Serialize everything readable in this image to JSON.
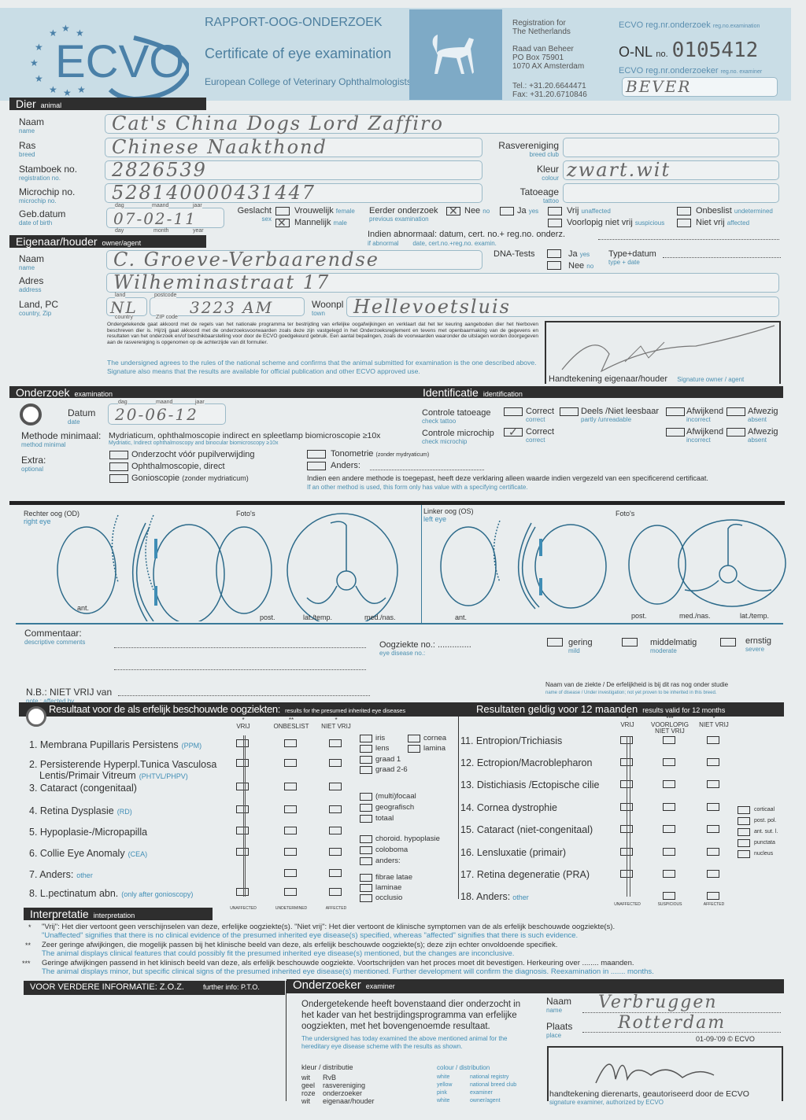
{
  "header": {
    "logo": "ECVO",
    "title_nl": "RAPPORT-OOG-ONDERZOEK",
    "title_en": "Certificate of eye examination",
    "college": "European College of Veterinary Ophthalmologists",
    "registration_1": "Registration for",
    "registration_2": "The Netherlands",
    "address_1": "Raad van Beheer",
    "address_2": "PO Box 75901",
    "address_3": "1070 AX Amsterdam",
    "tel": "Tel.: +31.20.6644471",
    "fax": "Fax: +31.20.6710846",
    "reg_exam_label": "ECVO reg.nr.onderzoek",
    "reg_exam_en": "reg.no.examination",
    "onl_label": "O-NL",
    "no_label": "no.",
    "cert_number": "0105412",
    "reg_examiner_label": "ECVO reg.nr.onderzoeker",
    "reg_examiner_en": "reg.no. examiner",
    "examiner_code": "BEVER"
  },
  "animal": {
    "section": "Dier",
    "section_en": "animal",
    "name_label": "Naam",
    "name_en": "name",
    "name": "Cat's China Dogs Lord Zaffiro",
    "breed_label": "Ras",
    "breed_en": "breed",
    "breed": "Chinese Naakthond",
    "club_label": "Rasvereniging",
    "club_en": "breed club",
    "club": "",
    "reg_label": "Stamboek no.",
    "reg_en": "registration no.",
    "reg": "2826539",
    "colour_label": "Kleur",
    "colour_en": "colour",
    "colour": "zwart.wit",
    "chip_label": "Microchip no.",
    "chip_en": "microchip no.",
    "chip": "528140000431447",
    "tattoo_label": "Tatoeage",
    "tattoo_en": "tattoo",
    "tattoo": "",
    "dob_label": "Geb.datum",
    "dob_en": "date of birth",
    "day_label": "dag",
    "month_label": "maand",
    "year_label": "jaar",
    "day_en": "day",
    "month_en": "month",
    "year_en": "year",
    "dob": "07-02-11",
    "sex_label": "Geslacht",
    "sex_en": "sex",
    "female": "Vrouwelijk",
    "female_en": "female",
    "female_checked": false,
    "male": "Mannelijk",
    "male_en": "male",
    "male_checked": true,
    "prev_label": "Eerder onderzoek",
    "prev_en": "previous examination",
    "prev_no": "Nee",
    "prev_no_en": "no",
    "prev_no_checked": true,
    "prev_yes": "Ja",
    "prev_yes_en": "yes",
    "unaffected": "Vrij",
    "unaffected_en": "unaffected",
    "undetermined": "Onbeslist",
    "undetermined_en": "undetermined",
    "suspicious": "Voorlopig niet vrij",
    "suspicious_en": "suspicious",
    "affected": "Niet vrij",
    "affected_en": "affected",
    "abnormal_label": "Indien abnormaal:",
    "abnormal_en": "if abnormal",
    "abnormal_fields": "datum, cert. no.+ reg.no. onderz.",
    "abnormal_fields_en": "date, cert.no.+reg.no. examin."
  },
  "owner": {
    "section": "Eigenaar/houder",
    "section_en": "owner/agent",
    "name_label": "Naam",
    "name_en": "name",
    "name": "C. Groeve-Verbaarendse",
    "address_label": "Adres",
    "address_en": "address",
    "address": "Wilheminastraat 17",
    "country_label": "Land, PC",
    "country_en": "country, Zip",
    "land_label": "land",
    "land_en": "country",
    "country": "NL",
    "postcode_label": "postcode",
    "postcode_en": "ZIP code",
    "postcode": "3223 AM",
    "town_label": "Woonpl",
    "town_en": "town",
    "town": "Hellevoetsluis",
    "dna_label": "DNA-Tests",
    "dna_yes": "Ja",
    "dna_yes_en": "yes",
    "dna_no": "Nee",
    "dna_no_en": "no",
    "type_label": "Type+datum",
    "type_en": "type + date",
    "agreement_nl": "Ondergetekende gaat akkoord met de regels van het nationale programma ter bestrijding van erfelijke oogafwijkingen en verklaart dat het ter keuring aangeboden dier het hierboven beschreven dier is. Hij/zij gaat akkoord met de onderzoeksvoorwaarden zoals deze zijn vastgelegd in het Onderzoeksreglement en tevens met openbaarmaking van de gegevens en resultaten van het onderzoek en/of beschikbaarstelling voor door de ECVO goedgekeurd gebruik. Een aantal bepalingen, zoals de voorwaarden waaronder de uitslagen worden doorgegeven aan de rasvereniging is opgenomen op de achterzijde van dit formulier.",
    "agreement_en": "The undersigned agrees to the rules of the national scheme and confirms that the animal submitted for examination is the one described above. Signature also means that the results are available for official publication and other ECVO approved use.",
    "signature_label": "Handtekening eigenaar/houder",
    "signature_en": "Signature owner / agent",
    "signature": "Groeve-Verbaarendse"
  },
  "exam": {
    "section": "Onderzoek",
    "section_en": "examination",
    "date_label": "Datum",
    "date_en": "date",
    "date": "20-06-12",
    "method_label": "Methode minimaal:",
    "method_en": "method minimal",
    "method": "Mydriaticum, ophthalmoscopie indirect en spleetlamp biomicroscopie ≥10x",
    "method_sub": "Mydriatic, Indirect ophthalmoscopy and binocular biomicroscopy ≥10x",
    "extra_label": "Extra:",
    "extra_en": "optional",
    "extras": [
      "Onderzocht vóór pupilverwijding",
      "Ophthalmoscopie, direct",
      "Gonioscopie"
    ],
    "gonio_note": "(zonder mydriaticum)",
    "tono": "Tonometrie",
    "tono_note": "(zonder mydryaticum)",
    "other": "Anders:",
    "other_method_nl": "Indien een andere methode is toegepast, heeft deze verklaring alleen waarde indien vergezeld van een specificerend certificaat.",
    "other_method_en": "If an other method is used, this form only has value with a specifying certificate."
  },
  "identification": {
    "section": "Identificatie",
    "section_en": "identification",
    "tattoo_label": "Controle tatoeage",
    "tattoo_en": "check tattoo",
    "chip_label": "Controle microchip",
    "chip_en": "check microchip",
    "correct": "Correct",
    "correct_en": "correct",
    "partly": "Deels /Niet leesbaar",
    "partly_en": "partly /unreadable",
    "incorrect": "Afwijkend",
    "incorrect_en": "incorrect",
    "absent": "Afwezig",
    "absent_en": "absent",
    "chip_correct_checked": true
  },
  "eyes": {
    "right": "Rechter oog  (OD)",
    "right_en": "right eye",
    "left": "Linker oog  (OS)",
    "left_en": "left eye",
    "photos": "Foto's",
    "ant": "ant.",
    "post": "post.",
    "lat": "lat./temp.",
    "med": "med./nas."
  },
  "comments": {
    "label": "Commentaar:",
    "label_en": "descriptive comments",
    "disease_no": "Oogziekte no.: ..............",
    "disease_no_en": "eye disease no.:",
    "mild": "gering",
    "mild_en": "mild",
    "moderate": "middelmatig",
    "moderate_en": "moderate",
    "severe": "ernstig",
    "severe_en": "severe",
    "nb": "N.B.: NIET VRIJ van",
    "nb_en": "note  :  affected by",
    "disease_name": "Naam van de ziekte / De erfelijkheid is bij dit ras nog onder studie",
    "disease_name_en": "name of disease / Under investigation; not yet proven to be inherited in this breed."
  },
  "results": {
    "section": "Resultaat voor de als erfelijk beschouwde oogziekten:",
    "section_en": "results for the presumed inherited eye diseases",
    "valid": "Resultaten geldig voor 12 maanden",
    "valid_en": "results valid for 12 months",
    "col_left": [
      "VRIJ",
      "ONBESLIST",
      "NIET VRIJ"
    ],
    "col_left_stars": [
      "*",
      "**",
      "*"
    ],
    "col_right": [
      "VRIJ",
      "VOORLOPIG NIET VRIJ",
      "NIET VRIJ"
    ],
    "col_right_stars": [
      "*",
      "***",
      "*"
    ],
    "foot_left": [
      "UNAFFECTED",
      "UNDETERMINED",
      "AFFECTED"
    ],
    "foot_right": [
      "UNAFFECTED",
      "SUSPICIOUS",
      "AFFECTED"
    ],
    "left_rows": [
      {
        "label": "1. Membrana Pupillaris Persistens",
        "abbr": "(PPM)",
        "vrij": true
      },
      {
        "label": "2. Persisterende Hyperpl.Tunica Vasculosa",
        "label2": "Lentis/Primair Vitreum",
        "abbr": "(PHTVL/PHPV)",
        "vrij": true
      },
      {
        "label": "3. Cataract (congenitaal)",
        "abbr": "",
        "vrij": true
      },
      {
        "label": "4. Retina Dysplasie",
        "abbr": "(RD)",
        "vrij": true
      },
      {
        "label": "5. Hypoplasie-/Micropapilla",
        "abbr": "",
        "vrij": true
      },
      {
        "label": "6. Collie Eye Anomaly",
        "abbr": "(CEA)",
        "vrij": true
      },
      {
        "label": "7. Anders:",
        "abbr": "other",
        "vrij": false
      },
      {
        "label": "8. L.pectinatum abn.",
        "abbr": "(only after gonioscopy)",
        "vrij": false
      }
    ],
    "sub_ppm": [
      "iris",
      "lens",
      "cornea",
      "lamina"
    ],
    "sub_phpv": [
      "graad 1",
      "graad 2-6"
    ],
    "sub_rd": [
      "(multi)focaal",
      "geografisch",
      "totaal"
    ],
    "sub_cea": [
      "choroid. hypoplasie",
      "coloboma",
      "anders:"
    ],
    "sub_lp": [
      "fibrae latae",
      "laminae",
      "occlusio"
    ],
    "right_rows": [
      {
        "label": "11. Entropion/Trichiasis",
        "vrij": true
      },
      {
        "label": "12. Ectropion/Macroblepharon",
        "vrij": true
      },
      {
        "label": "13. Distichiasis /Ectopische cilie",
        "vrij": true
      },
      {
        "label": "14. Cornea dystrophie",
        "vrij": true
      },
      {
        "label": "15. Cataract (niet-congenitaal)",
        "vrij": true
      },
      {
        "label": "16. Lensluxatie (primair)",
        "vrij": true
      },
      {
        "label": "17. Retina degeneratie (PRA)",
        "vrij": true
      },
      {
        "label": "18. Anders:",
        "abbr": "other",
        "vrij": false
      }
    ],
    "sub_cataract": [
      "corticaal",
      "post. pol.",
      "ant. sut. l.",
      "punctata",
      "nucleus"
    ]
  },
  "interpretation": {
    "section": "Interpretatie",
    "section_en": "interpretation",
    "lines": [
      {
        "star": "*",
        "nl": "\"Vrij\": Het dier vertoont geen verschijnselen van deze, erfelijke oogziekte(s). \"Niet vrij\": Het dier vertoont de klinische symptomen van de als erfelijk beschouwde oogziekte(s).",
        "en": "\"Unaffected\" signifies that there is no clinical evidence of the presumed inherited eye disease(s) specified, whereas \"affected\" signifies that there is such evidence."
      },
      {
        "star": "**",
        "nl": "Zeer geringe afwijkingen, die mogelijk passen bij het klinische beeld van deze, als erfelijk beschouwde oogziekte(s); deze zijn echter onvoldoende specifiek.",
        "en": "The animal displays clinical features that could possibly fit the presumed inherited eye disease(s) mentioned, but the changes are inconclusive."
      },
      {
        "star": "***",
        "nl": "Geringe afwijkingen passend in het klinisch beeld van deze, als erfelijk beschouwde oogziekte. Voortschrijden van het proces moet dit bevestigen. Herkeuring over ........ maanden.",
        "en": "The animal displays minor, but specific clinical signs of the presumed inherited eye disease(s) mentioned. Further development will confirm the diagnosis. Reexamination in ....... months."
      }
    ]
  },
  "footer": {
    "more_info": "VOOR VERDERE INFORMATIE: Z.O.Z.",
    "more_info_en": "further info: P.T.O.",
    "examiner_section": "Onderzoeker",
    "examiner_en": "examiner",
    "statement_nl": "Ondergetekende heeft bovenstaand dier onderzocht in het kader van het bestrijdingsprogramma van erfelijke oogziekten, met het bovengenoemde resultaat.",
    "statement_en": "The undersigned has today examined the above mentioned animal for the hereditary eye disease scheme with the results as shown.",
    "dist_label": "kleur / distributie",
    "dist_label_en": "colour / distribution",
    "dist": [
      {
        "c": "wit",
        "r": "RvB",
        "ce": "white",
        "re": "national registry"
      },
      {
        "c": "geel",
        "r": "rasvereniging",
        "ce": "yellow",
        "re": "national breed club"
      },
      {
        "c": "roze",
        "r": "onderzoeker",
        "ce": "pink",
        "re": "examiner"
      },
      {
        "c": "wit",
        "r": "eigenaar/houder",
        "ce": "white",
        "re": "owner/agent"
      }
    ],
    "name_label": "Naam",
    "name_en": "name",
    "name": "Verbruggen",
    "place_label": "Plaats",
    "place_en": "place",
    "place": "Rotterdam",
    "form_date": "01-09-'09 © ECVO",
    "signature_label": "handtekening dierenarts, geautoriseerd door de ECVO",
    "signature_en": "signature examiner, authorized by ECVO",
    "signature": "Verbruggen"
  },
  "colors": {
    "accent_blue": "#3f8db5",
    "header_blue": "#c9dde6",
    "bar": "#2e2e2e"
  }
}
